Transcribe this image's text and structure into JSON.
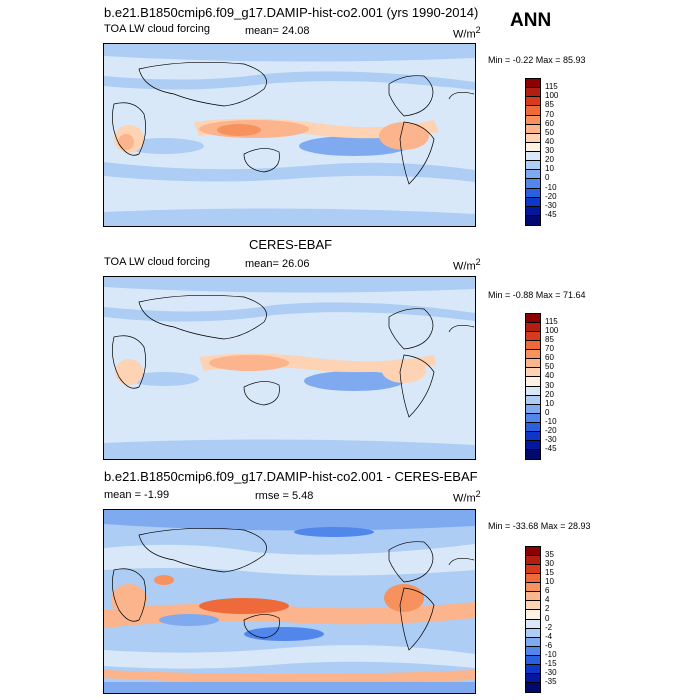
{
  "season": "ANN",
  "panels": [
    {
      "title": "b.e21.B1850cmip6.f09_g17.DAMIP-hist-co2.001 (yrs 1990-2014)",
      "left_label": "TOA LW cloud forcing",
      "center_label": "mean=  24.08",
      "units": "W/m",
      "units_sup": "2",
      "minmax": "Min =  -0.22 Max =  85.93"
    },
    {
      "title": "CERES-EBAF",
      "left_label": "TOA LW cloud forcing",
      "center_label": "mean=  26.06",
      "units": "W/m",
      "units_sup": "2",
      "minmax": "Min =  -0.88 Max =  71.64"
    },
    {
      "title": "b.e21.B1850cmip6.f09_g17.DAMIP-hist-co2.001 - CERES-EBAF",
      "left_label": "mean =  -1.99",
      "center_label": "rmse =   5.48",
      "units": "W/m",
      "units_sup": "2",
      "minmax": "Min = -33.68 Max =  28.93"
    }
  ],
  "colorbars": [
    {
      "labels": [
        "115",
        "100",
        "85",
        "70",
        "60",
        "50",
        "40",
        "30",
        "20",
        "10",
        "0",
        "-10",
        "-20",
        "-30",
        "-45"
      ],
      "colors": [
        "#8b0000",
        "#b21f12",
        "#d83b1c",
        "#ef6a3a",
        "#f7925f",
        "#fbb48b",
        "#fdd3b3",
        "#fdf1e4",
        "#d8e8f8",
        "#adcdf4",
        "#7faaf0",
        "#5186ea",
        "#2a5fe0",
        "#0e37c8",
        "#03189f",
        "#000a6e"
      ]
    },
    {
      "labels": [
        "115",
        "100",
        "85",
        "70",
        "60",
        "50",
        "40",
        "30",
        "20",
        "10",
        "0",
        "-10",
        "-20",
        "-30",
        "-45"
      ],
      "colors": [
        "#8b0000",
        "#b21f12",
        "#d83b1c",
        "#ef6a3a",
        "#f7925f",
        "#fbb48b",
        "#fdd3b3",
        "#fdf1e4",
        "#d8e8f8",
        "#adcdf4",
        "#7faaf0",
        "#5186ea",
        "#2a5fe0",
        "#0e37c8",
        "#03189f",
        "#000a6e"
      ]
    },
    {
      "labels": [
        "35",
        "30",
        "15",
        "10",
        "6",
        "4",
        "2",
        "0",
        "-2",
        "-4",
        "-6",
        "-10",
        "-15",
        "-30",
        "-35"
      ],
      "colors": [
        "#8b0000",
        "#b21f12",
        "#d83b1c",
        "#ef6a3a",
        "#f7925f",
        "#fbb48b",
        "#fdd3b3",
        "#fdf1e4",
        "#d8e8f8",
        "#adcdf4",
        "#7faaf0",
        "#5186ea",
        "#2a5fe0",
        "#0e37c8",
        "#03189f",
        "#000a6e"
      ]
    }
  ]
}
